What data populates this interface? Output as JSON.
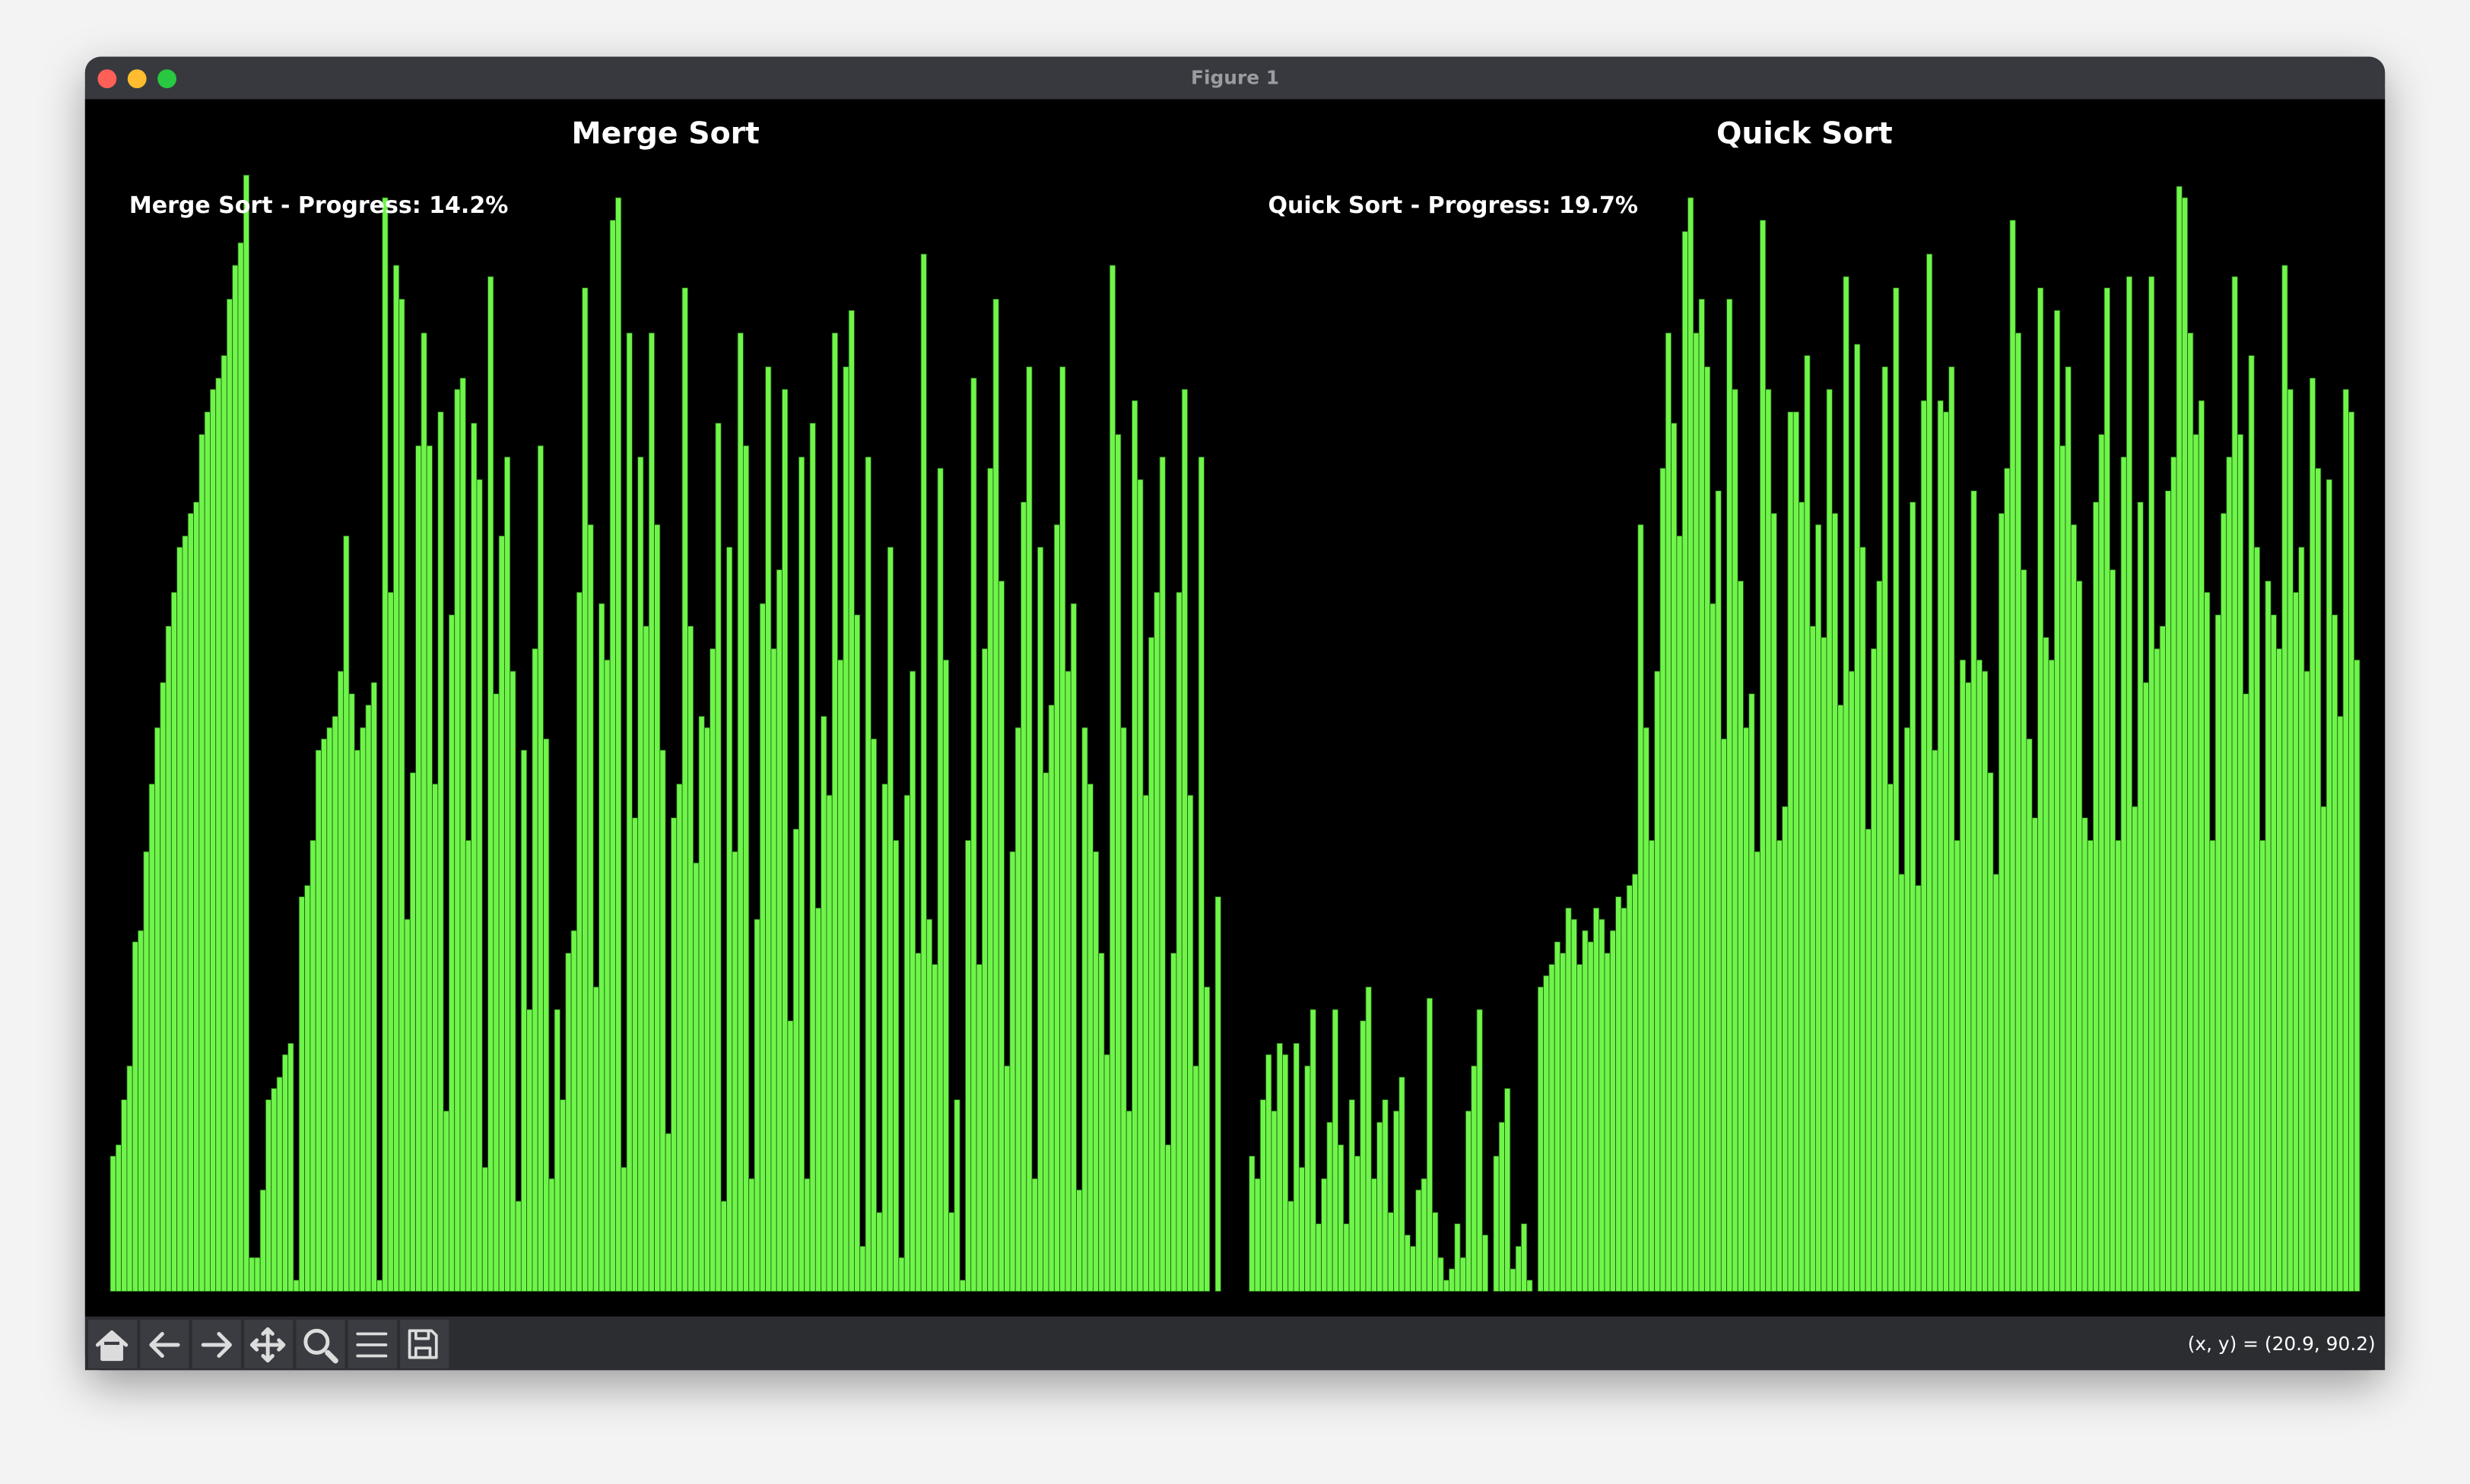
{
  "window": {
    "title": "Figure 1",
    "status": "(x, y) = (20.9, 90.2)"
  },
  "chart_data": [
    {
      "type": "bar",
      "title": "Merge Sort",
      "annotation": "Merge Sort - Progress: 14.2%",
      "color": "#6ff54a",
      "ylim": [
        0,
        100
      ],
      "values": [
        12,
        13,
        17,
        20,
        31,
        32,
        39,
        45,
        50,
        54,
        59,
        62,
        66,
        67,
        69,
        70,
        76,
        78,
        80,
        81,
        83,
        88,
        91,
        93,
        99,
        3,
        3,
        9,
        17,
        18,
        19,
        21,
        22,
        1,
        35,
        36,
        40,
        48,
        49,
        50,
        51,
        55,
        67,
        53,
        48,
        50,
        52,
        54,
        1,
        97,
        62,
        91,
        88,
        33,
        46,
        75,
        85,
        75,
        45,
        78,
        16,
        60,
        80,
        81,
        40,
        77,
        72,
        11,
        90,
        53,
        67,
        74,
        55,
        8,
        48,
        25,
        57,
        75,
        49,
        10,
        25,
        17,
        30,
        32,
        62,
        89,
        68,
        27,
        61,
        56,
        95,
        97,
        11,
        85,
        42,
        74,
        59,
        85,
        68,
        48,
        14,
        42,
        45,
        89,
        59,
        38,
        51,
        50,
        57,
        77,
        8,
        66,
        39,
        85,
        75,
        10,
        33,
        61,
        82,
        57,
        64,
        80,
        24,
        41,
        74,
        10,
        77,
        34,
        51,
        44,
        85,
        56,
        82,
        87,
        60,
        4,
        74,
        49,
        7,
        45,
        66,
        40,
        3,
        44,
        55,
        30,
        92,
        33,
        29,
        73,
        56,
        7,
        17,
        1,
        40,
        81,
        29,
        57,
        73,
        88,
        63,
        20,
        39,
        50,
        70,
        82,
        10,
        66,
        46,
        52,
        68,
        82,
        55,
        61,
        9,
        50,
        45,
        39,
        30,
        21,
        91,
        76,
        50,
        16,
        79,
        72,
        44,
        58,
        62,
        74,
        13,
        30,
        62,
        80,
        44,
        20,
        74,
        27,
        0,
        35
      ]
    },
    {
      "type": "bar",
      "title": "Quick Sort",
      "annotation": "Quick Sort - Progress: 19.7%",
      "color": "#6ff54a",
      "ylim": [
        0,
        100
      ],
      "values": [
        12,
        10,
        17,
        21,
        16,
        22,
        21,
        8,
        22,
        11,
        20,
        25,
        6,
        10,
        15,
        25,
        13,
        6,
        17,
        12,
        24,
        27,
        10,
        15,
        17,
        7,
        16,
        19,
        5,
        4,
        9,
        10,
        26,
        7,
        3,
        1,
        2,
        6,
        3,
        16,
        20,
        25,
        5,
        0,
        12,
        15,
        18,
        2,
        4,
        6,
        1,
        0,
        27,
        28,
        29,
        31,
        30,
        34,
        33,
        29,
        32,
        31,
        34,
        33,
        30,
        32,
        35,
        34,
        36,
        37,
        68,
        50,
        40,
        55,
        73,
        85,
        77,
        67,
        94,
        97,
        85,
        88,
        82,
        61,
        71,
        49,
        88,
        80,
        63,
        50,
        53,
        39,
        95,
        80,
        69,
        40,
        43,
        78,
        78,
        70,
        83,
        59,
        68,
        58,
        80,
        69,
        52,
        90,
        55,
        84,
        66,
        41,
        57,
        63,
        82,
        45,
        89,
        37,
        50,
        70,
        36,
        79,
        92,
        48,
        79,
        78,
        82,
        40,
        56,
        54,
        71,
        56,
        55,
        46,
        37,
        69,
        73,
        95,
        85,
        64,
        49,
        42,
        89,
        58,
        56,
        87,
        75,
        82,
        68,
        63,
        42,
        40,
        70,
        76,
        89,
        64,
        40,
        74,
        90,
        43,
        70,
        54,
        90,
        57,
        59,
        71,
        74,
        98,
        97,
        85,
        76,
        79,
        62,
        40,
        60,
        69,
        74,
        90,
        76,
        53,
        83,
        66,
        40,
        63,
        60,
        57,
        91,
        80,
        62,
        66,
        55,
        81,
        73,
        43,
        72,
        60,
        51,
        80,
        78,
        56
      ]
    }
  ]
}
